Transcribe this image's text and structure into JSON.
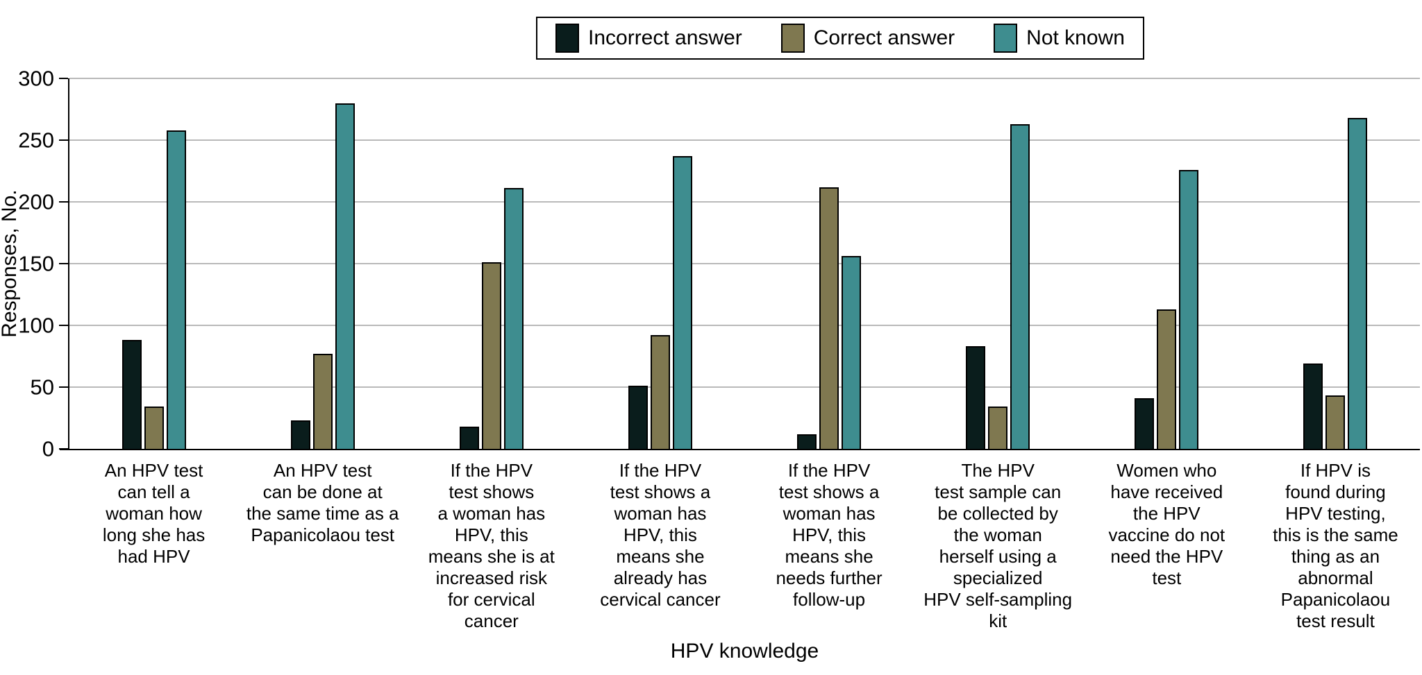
{
  "colors": {
    "incorrect": "#0a1d1c",
    "correct": "#7f7850",
    "not_known": "#3e8d8f",
    "gridline": "#b9b9b9",
    "axis": "#000000",
    "background": "#ffffff"
  },
  "legend": {
    "items": [
      {
        "label": "Incorrect answer",
        "color": "#0a1d1c"
      },
      {
        "label": "Correct answer",
        "color": "#7f7850"
      },
      {
        "label": "Not known",
        "color": "#3e8d8f"
      }
    ]
  },
  "chart_data": {
    "type": "bar",
    "title": "",
    "xlabel": "HPV knowledge",
    "ylabel": "Responses, No.",
    "ylim": [
      0,
      300
    ],
    "yticks": [
      0,
      50,
      100,
      150,
      200,
      250,
      300
    ],
    "grid": true,
    "legend_position": "top-center",
    "categories": [
      {
        "lines": [
          "An HPV test",
          "can tell a",
          "woman how",
          "long she has",
          "had HPV"
        ],
        "full": "An HPV test can tell a woman how long she has had HPV"
      },
      {
        "lines": [
          "An HPV test",
          "can be done at",
          "the same time as a",
          "Papanicolaou test"
        ],
        "full": "An HPV test can be done at the same time as a Papanicolaou test"
      },
      {
        "lines": [
          "If the HPV",
          "test shows",
          "a woman has",
          "HPV, this",
          "means she is at",
          "increased risk",
          "for cervical",
          "cancer"
        ],
        "full": "If the HPV test shows a woman has HPV, this means she is at increased risk for cervical cancer"
      },
      {
        "lines": [
          "If the HPV",
          "test shows a",
          "woman has",
          "HPV, this",
          "means she",
          "already has",
          "cervical cancer"
        ],
        "full": "If the HPV test shows a woman has HPV, this means she already has cervical cancer"
      },
      {
        "lines": [
          "If the HPV",
          "test shows a",
          "woman has",
          "HPV, this",
          "means she",
          "needs further",
          "follow-up"
        ],
        "full": "If the HPV test shows a woman has HPV, this means she needs further follow-up"
      },
      {
        "lines": [
          "The HPV",
          "test sample can",
          "be collected by",
          "the woman",
          "herself using a",
          "specialized",
          "HPV self-sampling",
          "kit"
        ],
        "full": "The HPV test sample can be collected by the woman herself using a specialized HPV self-sampling kit"
      },
      {
        "lines": [
          "Women who",
          "have received",
          "the HPV",
          "vaccine do not",
          "need the HPV",
          "test"
        ],
        "full": "Women who have received the HPV vaccine do not need the HPV test"
      },
      {
        "lines": [
          "If HPV is",
          "found during",
          "HPV testing,",
          "this is the same",
          "thing as an",
          "abnormal",
          "Papanicolaou",
          "test result"
        ],
        "full": "If HPV is found during HPV testing, this is the same thing as an abnormal Papanicolaou test result"
      }
    ],
    "series": [
      {
        "name": "Incorrect answer",
        "color": "#0a1d1c",
        "values": [
          88,
          23,
          18,
          51,
          12,
          83,
          41,
          69
        ]
      },
      {
        "name": "Correct answer",
        "color": "#7f7850",
        "values": [
          34,
          77,
          151,
          92,
          212,
          34,
          113,
          43
        ]
      },
      {
        "name": "Not known",
        "color": "#3e8d8f",
        "values": [
          258,
          280,
          211,
          237,
          156,
          263,
          226,
          268
        ]
      }
    ]
  }
}
